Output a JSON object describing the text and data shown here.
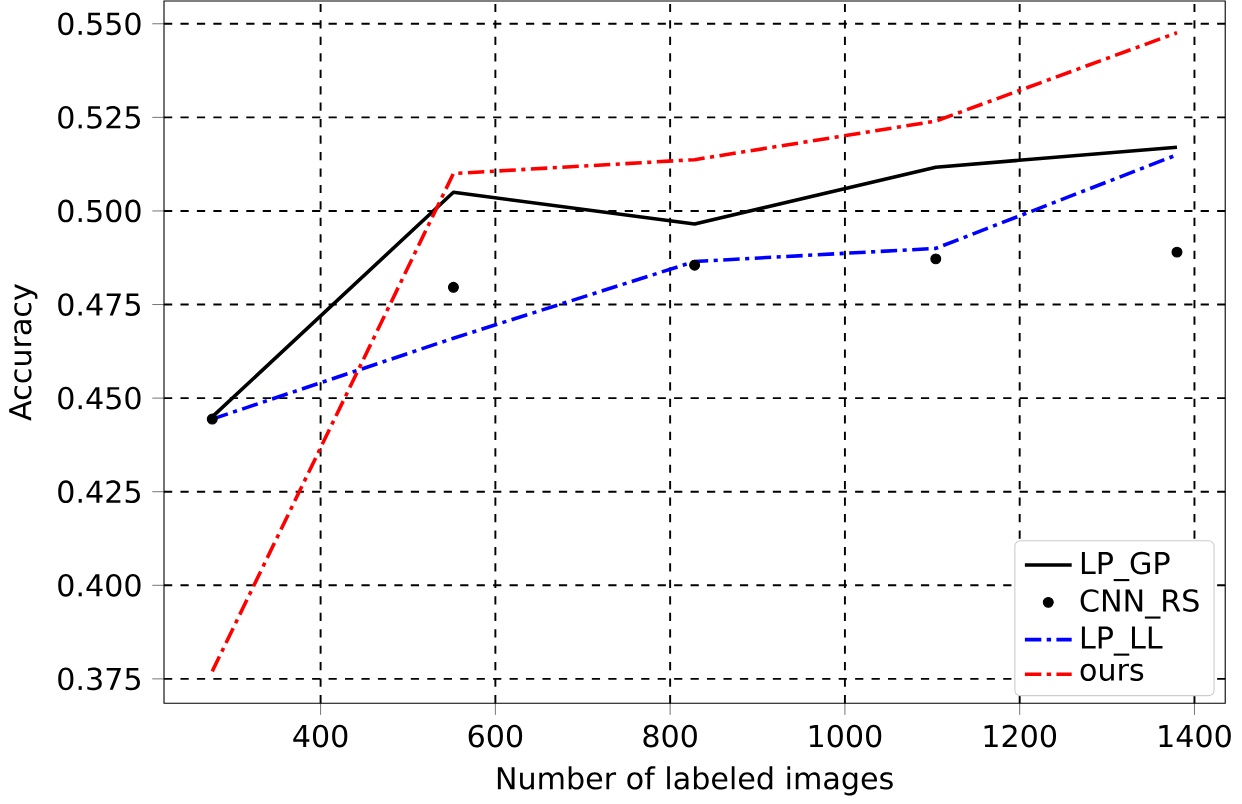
{
  "chart_data": {
    "type": "line",
    "xlabel": "Number of labeled images",
    "ylabel": "Accuracy",
    "x": [
      276,
      552,
      828,
      1104,
      1380
    ],
    "series": [
      {
        "name": "LP_GP",
        "color": "#000000",
        "line_style": "solid",
        "marker": "none",
        "values": [
          0.445,
          0.505,
          0.4965,
          0.5117,
          0.517
        ]
      },
      {
        "name": "CNN_RS",
        "type": "scatter",
        "color": "#000000",
        "marker": "circle",
        "values": [
          0.4444,
          0.4796,
          0.4855,
          0.4872,
          0.489
        ]
      },
      {
        "name": "LP_LL",
        "color": "#0000ff",
        "line_style": "dashdot",
        "marker": "none",
        "values": [
          0.4444,
          0.466,
          0.4865,
          0.49,
          0.515
        ]
      },
      {
        "name": "ours",
        "color": "#ff0000",
        "line_style": "dashdot",
        "marker": "none",
        "values": [
          0.377,
          0.51,
          0.5137,
          0.524,
          0.5476
        ]
      }
    ],
    "xlim": [
      220.8,
      1435.2
    ],
    "ylim": [
      0.3685,
      0.5561
    ],
    "xticks": [
      400,
      600,
      800,
      1000,
      1200,
      1400
    ],
    "yticks": [
      {
        "value": 0.375,
        "label": "0.375"
      },
      {
        "value": 0.4,
        "label": "0.400"
      },
      {
        "value": 0.425,
        "label": "0.425"
      },
      {
        "value": 0.45,
        "label": "0.450"
      },
      {
        "value": 0.475,
        "label": "0.475"
      },
      {
        "value": 0.5,
        "label": "0.500"
      },
      {
        "value": 0.525,
        "label": "0.525"
      },
      {
        "value": 0.55,
        "label": "0.550"
      }
    ],
    "grid": true,
    "legend": "bottom right"
  }
}
